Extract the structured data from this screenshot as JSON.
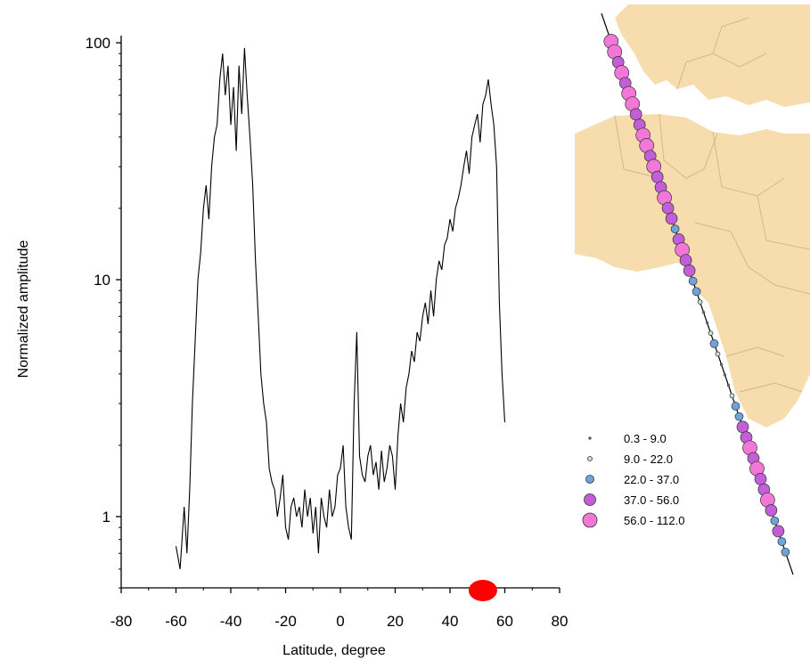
{
  "chart_data": [
    {
      "type": "line",
      "xlabel": "Latitude, degree",
      "ylabel": "Normalized amplitude",
      "xlim": [
        -80,
        80
      ],
      "ylim": [
        0.5,
        130
      ],
      "yscale": "log",
      "x_ticks": [
        -80,
        -60,
        -40,
        -20,
        0,
        20,
        40,
        60,
        80
      ],
      "y_ticks": [
        1,
        10,
        100
      ],
      "grid": false,
      "series": [
        {
          "color": "#000000",
          "x": [
            -60,
            -58.5,
            -57,
            -56,
            -55,
            -54,
            -53,
            -52,
            -51,
            -50,
            -49,
            -48,
            -47,
            -46,
            -45,
            -44,
            -43,
            -42,
            -41,
            -40,
            -39,
            -38,
            -37,
            -36,
            -35,
            -34,
            -33,
            -32,
            -31,
            -30,
            -29,
            -28,
            -27,
            -26,
            -25,
            -24,
            -23,
            -22,
            -21,
            -20,
            -19,
            -18,
            -17,
            -16,
            -15,
            -14,
            -13,
            -12,
            -11,
            -10,
            -9,
            -8,
            -7,
            -6,
            -5,
            -4,
            -3,
            -2,
            -1,
            0,
            1,
            2,
            3,
            4,
            5,
            6,
            7,
            8,
            9,
            10,
            11,
            12,
            13,
            14,
            15,
            16,
            17,
            18,
            19,
            20,
            21,
            22,
            23,
            24,
            25,
            26,
            27,
            28,
            29,
            30,
            31,
            32,
            33,
            34,
            35,
            36,
            37,
            38,
            39,
            40,
            41,
            42,
            43,
            44,
            45,
            46,
            47,
            48,
            49,
            50,
            51,
            52,
            53,
            54,
            55,
            56,
            57,
            58,
            59,
            60
          ],
          "values": [
            0.75,
            0.6,
            1.1,
            0.7,
            1.3,
            3.0,
            5.5,
            10.0,
            13.0,
            20.0,
            25.0,
            18.0,
            30.0,
            40.0,
            45.0,
            70.0,
            90.0,
            60.0,
            80.0,
            45.0,
            65.0,
            35.0,
            80.0,
            50.0,
            95.0,
            60.0,
            40.0,
            25.0,
            12.0,
            7.0,
            4.0,
            3.0,
            2.5,
            1.6,
            1.4,
            1.3,
            1.0,
            1.2,
            1.5,
            0.9,
            0.8,
            1.1,
            1.2,
            1.0,
            1.1,
            0.9,
            1.3,
            1.0,
            1.2,
            0.85,
            1.1,
            0.7,
            1.2,
            1.0,
            0.9,
            1.3,
            1.0,
            1.1,
            1.5,
            1.6,
            2.0,
            1.1,
            0.9,
            0.8,
            3.0,
            6.0,
            1.8,
            1.5,
            1.4,
            1.8,
            2.0,
            1.5,
            1.7,
            1.3,
            1.9,
            1.4,
            1.6,
            2.0,
            1.8,
            1.3,
            2.2,
            3.0,
            2.5,
            3.5,
            4.0,
            5.0,
            4.5,
            6.0,
            5.5,
            7.0,
            8.0,
            6.5,
            9.0,
            7.0,
            10.0,
            12.0,
            11.0,
            14.0,
            15.0,
            18.0,
            16.0,
            20.0,
            22.0,
            25.0,
            30.0,
            35.0,
            28.0,
            40.0,
            45.0,
            50.0,
            38.0,
            55.0,
            60.0,
            70.0,
            55.0,
            45.0,
            30.0,
            8.0,
            4.0,
            2.5
          ]
        }
      ],
      "annotations": [
        {
          "type": "marker",
          "x": 52,
          "color": "#ff0000"
        }
      ]
    },
    {
      "type": "scatter",
      "legend": {
        "placement": "bottom-right",
        "entries": [
          {
            "label": "0.3 - 9.0",
            "fill": "#8a8fb0"
          },
          {
            "label": "9.0 - 22.0",
            "fill": "#c9e0cf"
          },
          {
            "label": "22.0 - 37.0",
            "fill": "#6fa3dc"
          },
          {
            "label": "37.0 - 56.0",
            "fill": "#c25fd8"
          },
          {
            "label": "56.0 - 112.0",
            "fill": "#f277d6"
          }
        ]
      },
      "colors": {
        "land": "#f7dcae",
        "ocean": "#ffffff",
        "borders": "#d0b98d",
        "track": "#000000"
      }
    }
  ]
}
